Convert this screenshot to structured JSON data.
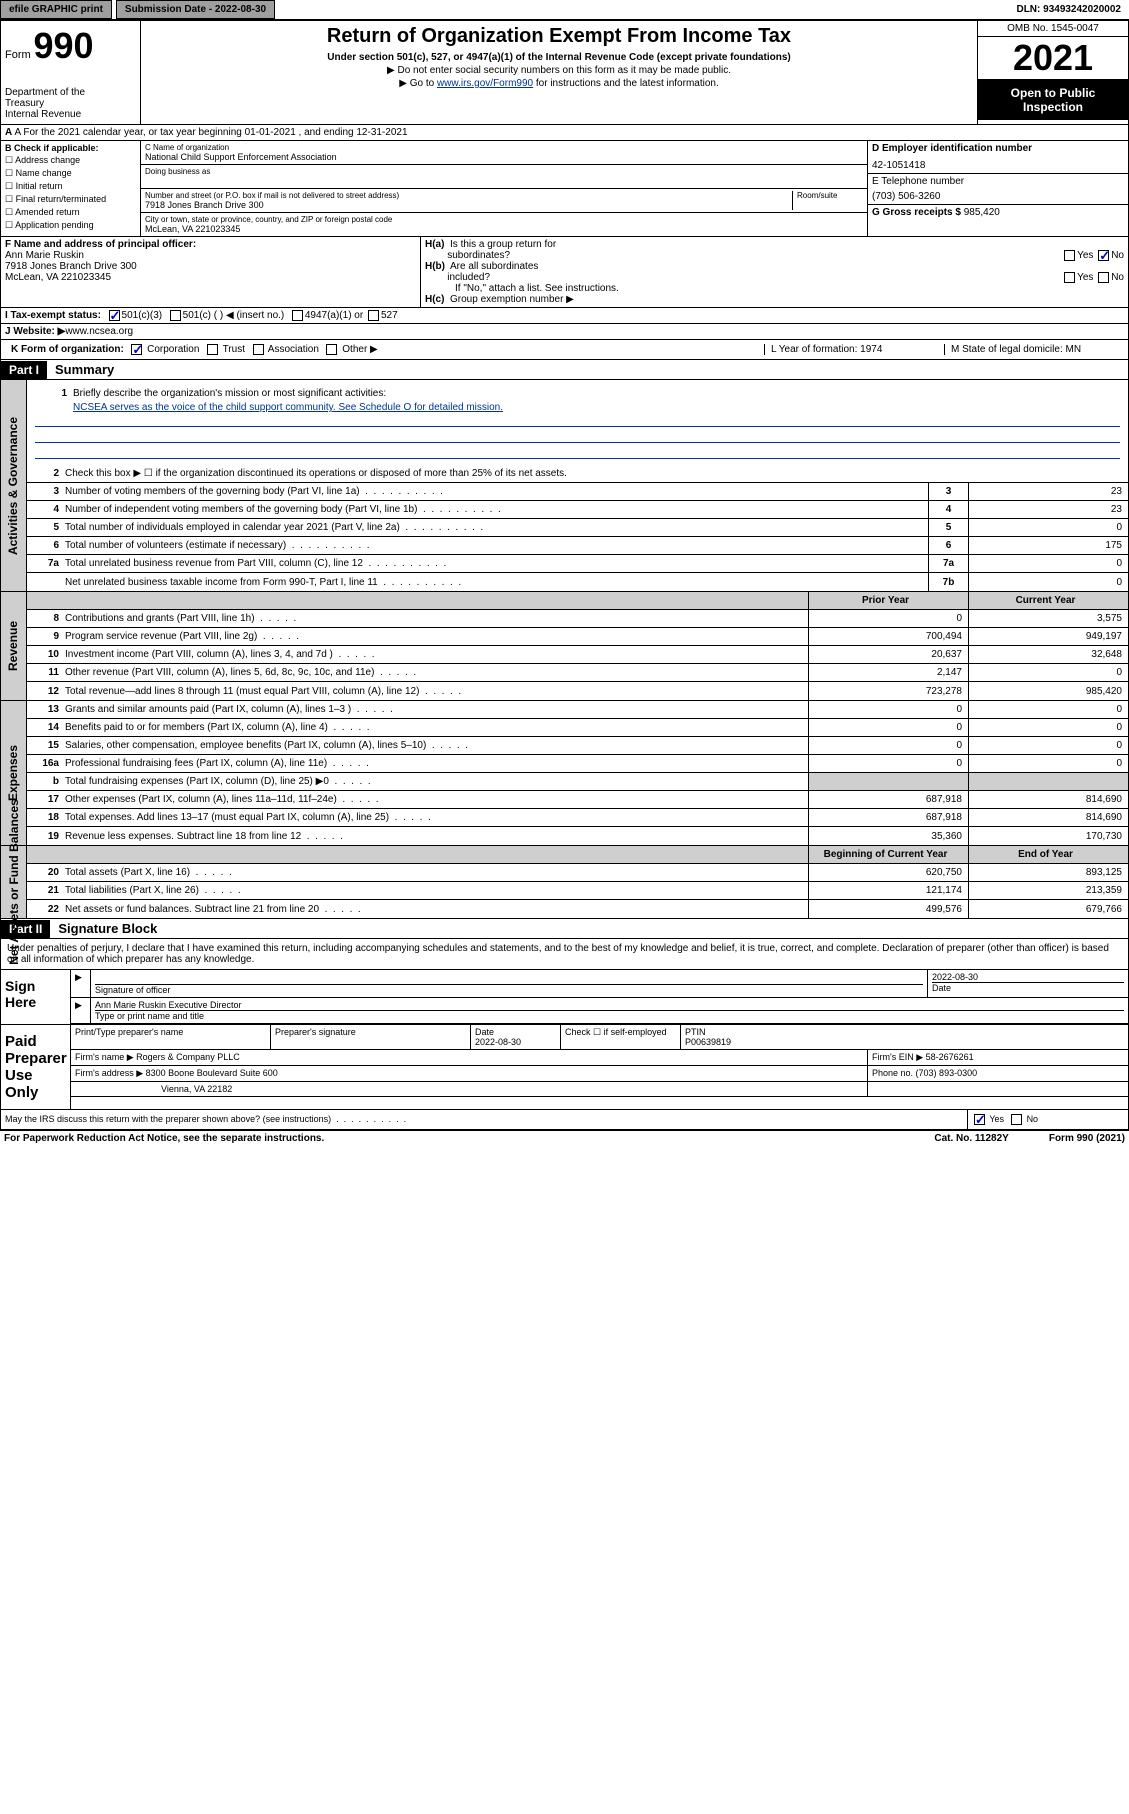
{
  "topbar": {
    "efile": "efile GRAPHIC print",
    "submission_label": "Submission Date - 2022-08-30",
    "dln": "DLN: 93493242020002"
  },
  "header": {
    "form_word": "Form",
    "form_num": "990",
    "dept": "Department of the Treasury\nInternal Revenue Service",
    "title": "Return of Organization Exempt From Income Tax",
    "subtitle": "Under section 501(c), 527, or 4947(a)(1) of the Internal Revenue Code (except private foundations)",
    "line1": "▶ Do not enter social security numbers on this form as it may be made public.",
    "line2_pre": "▶ Go to ",
    "line2_link": "www.irs.gov/Form990",
    "line2_post": " for instructions and the latest information.",
    "omb": "OMB No. 1545-0047",
    "year": "2021",
    "inspection": "Open to Public Inspection"
  },
  "row_a": "A For the 2021 calendar year, or tax year beginning 01-01-2021   , and ending 12-31-2021",
  "col_b": {
    "title": "B Check if applicable:",
    "items": [
      "Address change",
      "Name change",
      "Initial return",
      "Final return/terminated",
      "Amended return",
      "Application pending"
    ]
  },
  "col_c": {
    "name_label": "C Name of organization",
    "name": "National Child Support Enforcement Association",
    "dba": "Doing business as",
    "addr_label": "Number and street (or P.O. box if mail is not delivered to street address)",
    "room": "Room/suite",
    "addr": "7918 Jones Branch Drive 300",
    "city_label": "City or town, state or province, country, and ZIP or foreign postal code",
    "city": "McLean, VA  221023345"
  },
  "col_de": {
    "d_label": "D Employer identification number",
    "d_val": "42-1051418",
    "e_label": "E Telephone number",
    "e_val": "(703) 506-3260",
    "g_label": "G Gross receipts $ ",
    "g_val": "985,420"
  },
  "row_f": {
    "f_label": "F Name and address of principal officer:",
    "f_name": "Ann Marie Ruskin",
    "f_addr1": "7918 Jones Branch Drive 300",
    "f_addr2": "McLean, VA  221023345",
    "ha": "H(a)  Is this a group return for subordinates?",
    "ha_yes": "Yes",
    "ha_no": "No",
    "hb": "H(b)  Are all subordinates included?",
    "hb_yes": "Yes",
    "hb_no": "No",
    "hb_note": "If \"No,\" attach a list. See instructions.",
    "hc": "H(c)  Group exemption number ▶"
  },
  "row_i": {
    "label": "I   Tax-exempt status:",
    "c3": "501(c)(3)",
    "c_other": "501(c) (  ) ◀ (insert no.)",
    "a1": "4947(a)(1) or",
    "s527": "527"
  },
  "row_j": {
    "label": "J   Website: ▶ ",
    "val": "www.ncsea.org"
  },
  "row_k": {
    "label": "K Form of organization:",
    "corp": "Corporation",
    "trust": "Trust",
    "assoc": "Association",
    "other": "Other ▶",
    "l": "L Year of formation: 1974",
    "m": "M State of legal domicile: MN"
  },
  "parts": {
    "p1": "Part I",
    "p1_title": "Summary",
    "p2": "Part II",
    "p2_title": "Signature Block"
  },
  "summary": {
    "gov_label": "Activities & Governance",
    "rev_label": "Revenue",
    "exp_label": "Expenses",
    "na_label": "Net Assets or Fund Balances",
    "line1": "Briefly describe the organization's mission or most significant activities:",
    "mission": "NCSEA serves as the voice of the child support community. See Schedule O for detailed mission.",
    "line2": "Check this box ▶ ☐  if the organization discontinued its operations or disposed of more than 25% of its net assets.",
    "rows": [
      {
        "n": "3",
        "t": "Number of voting members of the governing body (Part VI, line 1a)",
        "b": "3",
        "v": "23"
      },
      {
        "n": "4",
        "t": "Number of independent voting members of the governing body (Part VI, line 1b)",
        "b": "4",
        "v": "23"
      },
      {
        "n": "5",
        "t": "Total number of individuals employed in calendar year 2021 (Part V, line 2a)",
        "b": "5",
        "v": "0"
      },
      {
        "n": "6",
        "t": "Total number of volunteers (estimate if necessary)",
        "b": "6",
        "v": "175"
      },
      {
        "n": "7a",
        "t": "Total unrelated business revenue from Part VIII, column (C), line 12",
        "b": "7a",
        "v": "0"
      },
      {
        "n": "",
        "t": "Net unrelated business taxable income from Form 990-T, Part I, line 11",
        "b": "7b",
        "v": "0"
      }
    ],
    "col_headers": {
      "prior": "Prior Year",
      "current": "Current Year",
      "beg": "Beginning of Current Year",
      "end": "End of Year"
    },
    "rev_rows": [
      {
        "n": "8",
        "t": "Contributions and grants (Part VIII, line 1h)",
        "p": "0",
        "c": "3,575"
      },
      {
        "n": "9",
        "t": "Program service revenue (Part VIII, line 2g)",
        "p": "700,494",
        "c": "949,197"
      },
      {
        "n": "10",
        "t": "Investment income (Part VIII, column (A), lines 3, 4, and 7d )",
        "p": "20,637",
        "c": "32,648"
      },
      {
        "n": "11",
        "t": "Other revenue (Part VIII, column (A), lines 5, 6d, 8c, 9c, 10c, and 11e)",
        "p": "2,147",
        "c": "0"
      },
      {
        "n": "12",
        "t": "Total revenue—add lines 8 through 11 (must equal Part VIII, column (A), line 12)",
        "p": "723,278",
        "c": "985,420"
      }
    ],
    "exp_rows": [
      {
        "n": "13",
        "t": "Grants and similar amounts paid (Part IX, column (A), lines 1–3 )",
        "p": "0",
        "c": "0"
      },
      {
        "n": "14",
        "t": "Benefits paid to or for members (Part IX, column (A), line 4)",
        "p": "0",
        "c": "0"
      },
      {
        "n": "15",
        "t": "Salaries, other compensation, employee benefits (Part IX, column (A), lines 5–10)",
        "p": "0",
        "c": "0"
      },
      {
        "n": "16a",
        "t": "Professional fundraising fees (Part IX, column (A), line 11e)",
        "p": "0",
        "c": "0"
      },
      {
        "n": "b",
        "t": "Total fundraising expenses (Part IX, column (D), line 25) ▶0",
        "p": "",
        "c": "",
        "shade": true
      },
      {
        "n": "17",
        "t": "Other expenses (Part IX, column (A), lines 11a–11d, 11f–24e)",
        "p": "687,918",
        "c": "814,690"
      },
      {
        "n": "18",
        "t": "Total expenses. Add lines 13–17 (must equal Part IX, column (A), line 25)",
        "p": "687,918",
        "c": "814,690"
      },
      {
        "n": "19",
        "t": "Revenue less expenses. Subtract line 18 from line 12",
        "p": "35,360",
        "c": "170,730"
      }
    ],
    "na_rows": [
      {
        "n": "20",
        "t": "Total assets (Part X, line 16)",
        "p": "620,750",
        "c": "893,125"
      },
      {
        "n": "21",
        "t": "Total liabilities (Part X, line 26)",
        "p": "121,174",
        "c": "213,359"
      },
      {
        "n": "22",
        "t": "Net assets or fund balances. Subtract line 21 from line 20",
        "p": "499,576",
        "c": "679,766"
      }
    ]
  },
  "sig": {
    "intro": "Under penalties of perjury, I declare that I have examined this return, including accompanying schedules and statements, and to the best of my knowledge and belief, it is true, correct, and complete. Declaration of preparer (other than officer) is based on all information of which preparer has any knowledge.",
    "sign_here": "Sign Here",
    "sig_officer": "Signature of officer",
    "date": "Date",
    "date_val": "2022-08-30",
    "name_title_label": "Type or print name and title",
    "name_title": "Ann Marie Ruskin  Executive Director",
    "paid": "Paid Preparer Use Only",
    "prep_name_label": "Print/Type preparer's name",
    "prep_sig_label": "Preparer's signature",
    "prep_date": "2022-08-30",
    "check_label": "Check ☐ if self-employed",
    "ptin_label": "PTIN",
    "ptin": "P00639819",
    "firm_name_label": "Firm's name    ▶ ",
    "firm_name": "Rogers & Company PLLC",
    "firm_ein_label": "Firm's EIN ▶ ",
    "firm_ein": "58-2676261",
    "firm_addr_label": "Firm's address ▶ ",
    "firm_addr": "8300 Boone Boulevard Suite 600",
    "firm_city": "Vienna, VA  22182",
    "phone_label": "Phone no. ",
    "phone": "(703) 893-0300",
    "discuss": "May the IRS discuss this return with the preparer shown above? (see instructions)",
    "yes": "Yes",
    "no": "No"
  },
  "footer": {
    "left": "For Paperwork Reduction Act Notice, see the separate instructions.",
    "mid": "Cat. No. 11282Y",
    "right": "Form 990 (2021)"
  }
}
